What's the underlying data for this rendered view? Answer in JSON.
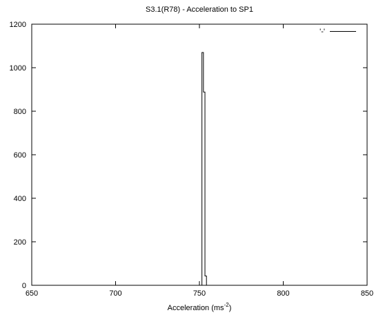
{
  "chart_data": {
    "type": "histogram-step",
    "title": "S3.1(R78) - Acceleration to SP1",
    "xlabel": "Acceleration (ms",
    "xlabel_superscript": "-2",
    "xlabel_close": ")",
    "ylabel": "",
    "xlim": [
      650,
      850
    ],
    "ylim": [
      0,
      1200
    ],
    "x_ticks": [
      650,
      700,
      750,
      800,
      850
    ],
    "y_ticks": [
      0,
      200,
      400,
      600,
      800,
      1000,
      1200
    ],
    "grid": false,
    "legend": {
      "position": "top-right",
      "entries": [
        {
          "label": "'-'"
        }
      ]
    },
    "series": [
      {
        "name": "'-'",
        "bins": [
          {
            "x0": 751.5,
            "x1": 752.4,
            "value": 1070
          },
          {
            "x0": 752.4,
            "x1": 753.3,
            "value": 888
          },
          {
            "x0": 753.3,
            "x1": 754.2,
            "value": 43
          }
        ]
      }
    ]
  }
}
